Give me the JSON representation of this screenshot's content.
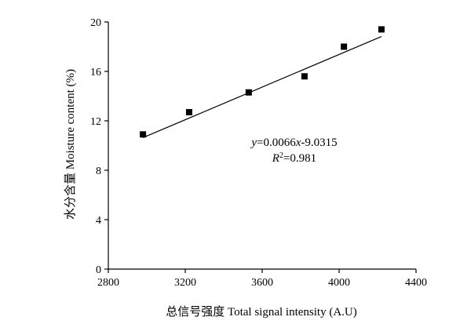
{
  "chart_data": {
    "type": "scatter",
    "title": "",
    "xlabel": "总信号强度 Total signal intensity (A.U)",
    "ylabel": "水分含量 Moisture content (%)",
    "xlim": [
      2800,
      4400
    ],
    "ylim": [
      0,
      20
    ],
    "xticks": [
      2800,
      3200,
      3600,
      4000,
      4400
    ],
    "yticks": [
      0,
      4,
      8,
      12,
      16,
      20
    ],
    "grid": false,
    "legend": "none",
    "points": [
      {
        "x": 2980,
        "y": 10.9
      },
      {
        "x": 3220,
        "y": 12.7
      },
      {
        "x": 3530,
        "y": 14.3
      },
      {
        "x": 3820,
        "y": 15.6
      },
      {
        "x": 4025,
        "y": 18.0
      },
      {
        "x": 4220,
        "y": 19.4
      }
    ],
    "fit": {
      "slope": 0.0066,
      "intercept": -9.0315,
      "x_range": [
        2980,
        4220
      ],
      "equation": {
        "y": "y",
        "eq_mid": "=0.0066",
        "x": "x",
        "eq_end": "-9.0315"
      },
      "r2": {
        "r": "R",
        "sup": "2",
        "value": "=0.981"
      }
    },
    "colors": {
      "marker": "#000000",
      "line": "#000000",
      "axis": "#000000"
    }
  }
}
